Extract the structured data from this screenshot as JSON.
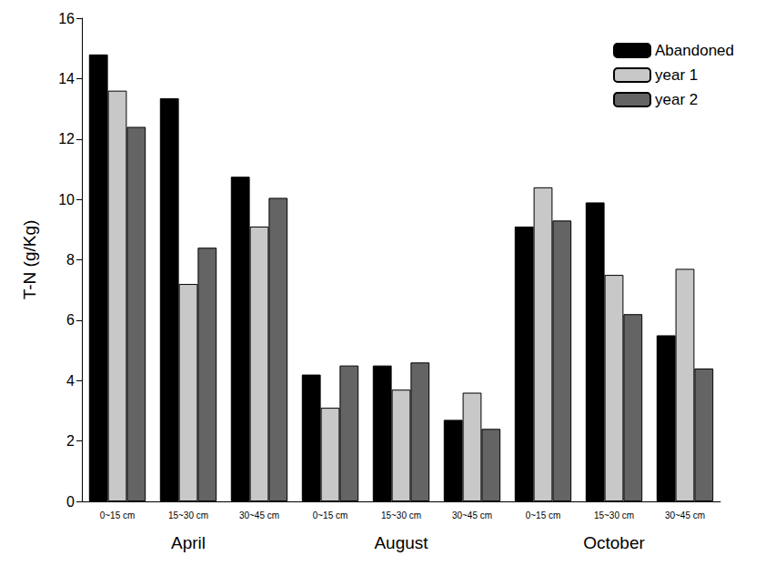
{
  "chart_data": {
    "type": "bar",
    "y_label": "T-N (g/Kg)",
    "categories": [
      "0~15 cm",
      "15~30 cm",
      "30~45 cm",
      "0~15 cm",
      "15~30 cm",
      "30~45 cm",
      "0~15 cm",
      "15~30 cm",
      "30~45 cm"
    ],
    "category_groups": [
      "April",
      "August",
      "October"
    ],
    "series": [
      {
        "name": "Abandoned",
        "color": "#000000",
        "values": [
          14.8,
          13.35,
          10.75,
          4.2,
          4.5,
          2.7,
          9.1,
          9.9,
          5.5
        ]
      },
      {
        "name": "year 1",
        "color": "#c8c8c8",
        "values": [
          13.6,
          7.2,
          9.1,
          3.1,
          3.7,
          3.6,
          10.4,
          7.5,
          7.7
        ]
      },
      {
        "name": "year 2",
        "color": "#646464",
        "values": [
          12.4,
          8.4,
          10.05,
          4.5,
          4.6,
          2.4,
          9.3,
          6.2,
          4.4
        ]
      }
    ],
    "ylim": [
      0,
      16
    ],
    "yticks": [
      0,
      2,
      4,
      6,
      8,
      10,
      12,
      14,
      16
    ],
    "grid": false,
    "legend": "upper right",
    "data_labels": false
  }
}
